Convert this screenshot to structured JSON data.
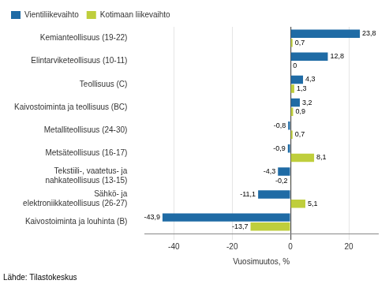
{
  "chart_data": {
    "type": "bar",
    "orientation": "horizontal",
    "categories": [
      "Kemianteollisuus (19-22)",
      "Elintarviketeollisuus (10-11)",
      "Teollisuus (C)",
      "Kaivostoiminta ja teollisuus (BC)",
      "Metalliteollisuus (24-30)",
      "Metsäteollisuus (16-17)",
      "Tekstiili-, vaatetus- ja\nnahkateollisuus (13-15)",
      "Sähkö- ja\nelektroniikkateollisuus (26-27)",
      "Kaivostoiminta ja louhinta (B)"
    ],
    "series": [
      {
        "name": "Vientiliikevaihto",
        "color": "#1F6BA5",
        "values": [
          23.8,
          12.8,
          4.3,
          3.2,
          -0.8,
          -0.9,
          -4.3,
          -11.1,
          -43.9
        ],
        "value_labels": [
          "23,8",
          "12,8",
          "4,3",
          "3,2",
          "-0,8",
          "-0,9",
          "-4,3",
          "-11,1",
          "-43,9"
        ]
      },
      {
        "name": "Kotimaan liikevaihto",
        "color": "#BFCE3C",
        "values": [
          0.7,
          0.0,
          1.3,
          0.9,
          0.7,
          8.1,
          -0.2,
          5.1,
          -13.7
        ],
        "value_labels": [
          "0,7",
          "0",
          "1,3",
          "0,9",
          "0,7",
          "8,1",
          "-0,2",
          "5,1",
          "-13,7"
        ]
      }
    ],
    "xlabel": "Vuosimuutos, %",
    "xlim": [
      -50,
      30
    ],
    "xticks": [
      -40,
      -20,
      0,
      20
    ],
    "grid": true,
    "legend": "upper left",
    "data_labels": true,
    "annotations": [
      "Lähde: Tilastokeskus"
    ]
  }
}
